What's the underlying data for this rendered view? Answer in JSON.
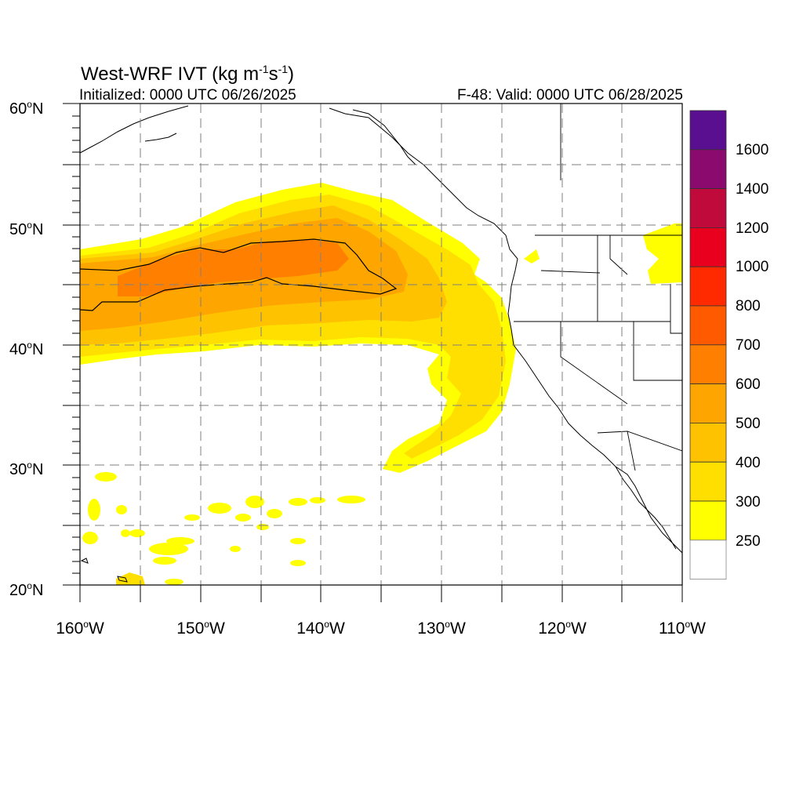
{
  "header": {
    "title_main": "West-WRF IVT (kg m",
    "title_exp1": "-1",
    "title_mid": "s",
    "title_exp2": "-1",
    "title_end": ")",
    "initialized": "Initialized: 0000 UTC 06/26/2025",
    "valid": "F-48: Valid: 0000 UTC 06/28/2025"
  },
  "axes": {
    "lat_labels": [
      {
        "num": "60",
        "deg": "o",
        "hemi": "N"
      },
      {
        "num": "50",
        "deg": "o",
        "hemi": "N"
      },
      {
        "num": "40",
        "deg": "o",
        "hemi": "N"
      },
      {
        "num": "30",
        "deg": "o",
        "hemi": "N"
      },
      {
        "num": "20",
        "deg": "o",
        "hemi": "N"
      }
    ],
    "lon_labels": [
      {
        "num": "160",
        "deg": "o",
        "hemi": "W"
      },
      {
        "num": "150",
        "deg": "o",
        "hemi": "W"
      },
      {
        "num": "140",
        "deg": "o",
        "hemi": "W"
      },
      {
        "num": "130",
        "deg": "o",
        "hemi": "W"
      },
      {
        "num": "120",
        "deg": "o",
        "hemi": "W"
      },
      {
        "num": "110",
        "deg": "o",
        "hemi": "W"
      }
    ],
    "lat_range": [
      20,
      60
    ],
    "lon_range": [
      -160,
      -110
    ],
    "grid": true
  },
  "colorbar": {
    "labels": [
      "1600",
      "1400",
      "1200",
      "1000",
      "800",
      "700",
      "600",
      "500",
      "400",
      "300",
      "250"
    ],
    "colors_top_to_bottom": [
      "#5a0f91",
      "#8b0a6e",
      "#c00a3c",
      "#e8001e",
      "#ff2a00",
      "#ff5a00",
      "#ff8000",
      "#ffa500",
      "#ffc200",
      "#ffdf00",
      "#ffff00",
      "#ffffff"
    ]
  },
  "colors": {
    "ivt_250": "#ffff00",
    "ivt_300": "#ffdf00",
    "ivt_400": "#ffc200",
    "ivt_500": "#ffa500",
    "ivt_600": "#ff8000"
  }
}
